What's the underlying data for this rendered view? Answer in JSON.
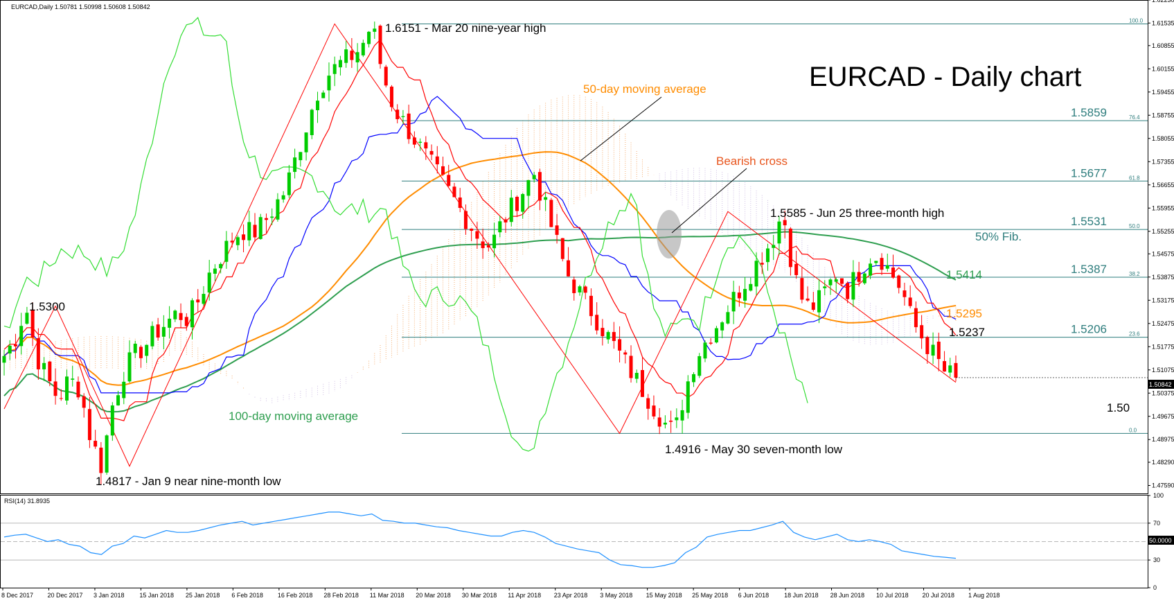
{
  "header": {
    "symbol_info": "EURCAD,Daily  1.50781 1.50998 1.50608 1.50842",
    "title": "EURCAD - Daily chart"
  },
  "rsi_header": "RSI(14) 31.8935",
  "price_tag": "1.50842",
  "rsi_tag": "50.0000",
  "colors": {
    "bull": "#00cc00",
    "bear": "#ff0000",
    "ma50": "#ff8c00",
    "ma100": "#2e9e4f",
    "kijun": "#0000ff",
    "tenkan": "#ff0000",
    "chikou": "#33dd33",
    "fib": "#2e7d7d",
    "rsi": "#1e90ff",
    "annotation_orange": "#ff8c00",
    "bearish_cross": "#e8551d"
  },
  "chart_data": {
    "type": "candlestick",
    "symbol": "EURCAD",
    "timeframe": "Daily",
    "title": "EURCAD - Daily chart",
    "ylim": [
      1.4735,
      1.6223
    ],
    "y_ticks": [
      "1.62230",
      "1.61535",
      "1.60855",
      "1.60155",
      "1.59455",
      "1.58755",
      "1.58055",
      "1.57355",
      "1.56655",
      "1.55955",
      "1.55255",
      "1.54575",
      "1.53875",
      "1.53175",
      "1.52475",
      "1.51775",
      "1.51075",
      "1.50375",
      "1.49675",
      "1.48975",
      "1.48290",
      "1.47590"
    ],
    "x_ticks": [
      "8 Dec 2017",
      "20 Dec 2017",
      "3 Jan 2018",
      "15 Jan 2018",
      "25 Jan 2018",
      "6 Feb 2018",
      "16 Feb 2018",
      "28 Feb 2018",
      "11 Mar 2018",
      "20 Mar 2018",
      "30 Mar 2018",
      "11 Apr 2018",
      "23 Apr 2018",
      "3 May 2018",
      "15 May 2018",
      "25 May 2018",
      "6 Jun 2018",
      "18 Jun 2018",
      "28 Jun 2018",
      "10 Jul 2018",
      "20 Jul 2018",
      "1 Aug 2018"
    ],
    "close_path": [
      1.515,
      1.52,
      1.53,
      1.515,
      1.508,
      1.502,
      1.508,
      1.505,
      1.49,
      1.4817,
      1.5,
      1.51,
      1.515,
      1.518,
      1.522,
      1.525,
      1.528,
      1.526,
      1.532,
      1.54,
      1.545,
      1.55,
      1.553,
      1.552,
      1.555,
      1.56,
      1.565,
      1.575,
      1.585,
      1.595,
      1.6,
      1.603,
      1.605,
      1.608,
      1.6151,
      1.6,
      1.59,
      1.585,
      1.58,
      1.575,
      1.57,
      1.565,
      1.56,
      1.555,
      1.55,
      1.548,
      1.555,
      1.56,
      1.565,
      1.57,
      1.56,
      1.55,
      1.54,
      1.535,
      1.53,
      1.525,
      1.52,
      1.515,
      1.51,
      1.505,
      1.5,
      1.495,
      1.4916,
      1.505,
      1.515,
      1.52,
      1.525,
      1.53,
      1.535,
      1.54,
      1.545,
      1.55,
      1.5585,
      1.54,
      1.53,
      1.53,
      1.535,
      1.54,
      1.535,
      1.54,
      1.545,
      1.545,
      1.54,
      1.535,
      1.525,
      1.52,
      1.515,
      1.51,
      1.50842
    ],
    "fibonacci": [
      {
        "level": "100.0",
        "value": 1.6151,
        "label": ""
      },
      {
        "level": "76.4",
        "value": 1.5859,
        "label": "1.5859"
      },
      {
        "level": "61.8",
        "value": 1.5677,
        "label": "1.5677"
      },
      {
        "level": "50.0",
        "value": 1.5531,
        "label": "1.5531"
      },
      {
        "level": "38.2",
        "value": 1.5387,
        "label": "1.5387"
      },
      {
        "level": "23.6",
        "value": 1.5206,
        "label": "1.5206"
      },
      {
        "level": "0.0",
        "value": 1.4916,
        "label": ""
      }
    ],
    "indicator_values": {
      "ma100": "1.5414",
      "ma50": "1.5295",
      "kijun": "1.5237"
    },
    "annotations": [
      "1.6151 - Mar 20 nine-year high",
      "1.5585 - Jun 25 three-month high",
      "1.4916 - May 30 seven-month low",
      "1.4817 - Jan 9 near nine-month low",
      "1.5300",
      "1.50",
      "50-day moving average",
      "100-day moving average",
      "Bearish cross",
      "50% Fib."
    ],
    "rsi": {
      "label": "RSI(14)",
      "value": 31.8935,
      "ylim": [
        0,
        100
      ],
      "levels": [
        30,
        50,
        70
      ],
      "y_ticks": [
        "100",
        "70",
        "50",
        "30",
        "0"
      ],
      "series": [
        55,
        57,
        58,
        54,
        50,
        52,
        47,
        45,
        38,
        36,
        45,
        48,
        56,
        54,
        58,
        62,
        60,
        60,
        62,
        65,
        68,
        70,
        72,
        68,
        70,
        72,
        74,
        76,
        78,
        80,
        82,
        82,
        80,
        78,
        80,
        73,
        72,
        70,
        70,
        68,
        66,
        65,
        62,
        60,
        58,
        56,
        56,
        60,
        62,
        60,
        55,
        48,
        45,
        42,
        40,
        38,
        30,
        25,
        24,
        22,
        22,
        24,
        27,
        38,
        44,
        55,
        58,
        60,
        62,
        62,
        65,
        68,
        72,
        60,
        55,
        52,
        55,
        58,
        52,
        50,
        52,
        50,
        47,
        40,
        38,
        36,
        34,
        33,
        31.9
      ]
    }
  }
}
